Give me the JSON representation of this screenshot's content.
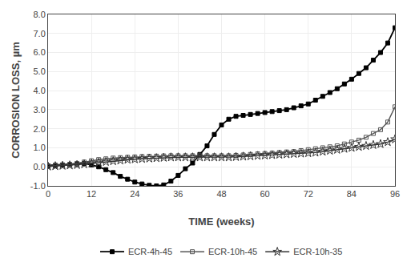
{
  "chart_data": {
    "type": "line",
    "xlabel": "TIME (weeks)",
    "ylabel": "CORROSION LOSS, µm",
    "xlim": [
      0,
      96
    ],
    "ylim": [
      -1.0,
      8.0
    ],
    "xticks": [
      0,
      12,
      24,
      36,
      48,
      60,
      72,
      84,
      96
    ],
    "yticks": [
      {
        "value": -1.0,
        "label": "-1.0"
      },
      {
        "value": 0.0,
        "label": "0.0"
      },
      {
        "value": 1.0,
        "label": "1.0"
      },
      {
        "value": 2.0,
        "label": "2.0"
      },
      {
        "value": 3.0,
        "label": "3.0"
      },
      {
        "value": 4.0,
        "label": "4.0"
      },
      {
        "value": 5.0,
        "label": "5.0"
      },
      {
        "value": 6.0,
        "label": "6.0"
      },
      {
        "value": 7.0,
        "label": "7.0"
      },
      {
        "value": 8.0,
        "label": "8.0"
      }
    ],
    "grid": true,
    "legend": "bottom",
    "x": [
      0,
      2,
      4,
      6,
      8,
      10,
      12,
      14,
      16,
      18,
      20,
      22,
      24,
      26,
      28,
      30,
      32,
      34,
      36,
      38,
      40,
      42,
      44,
      46,
      48,
      50,
      52,
      54,
      56,
      58,
      60,
      62,
      64,
      66,
      68,
      70,
      72,
      74,
      76,
      78,
      80,
      82,
      84,
      86,
      88,
      90,
      92,
      94,
      96
    ],
    "series": [
      {
        "name": "ECR-4h-45",
        "color": "#000000",
        "marker": "square",
        "values": [
          0.05,
          0.08,
          0.1,
          0.12,
          0.15,
          0.18,
          0.1,
          0.0,
          -0.15,
          -0.3,
          -0.5,
          -0.65,
          -0.8,
          -0.9,
          -0.97,
          -1.0,
          -0.95,
          -0.75,
          -0.45,
          -0.1,
          0.2,
          0.65,
          1.1,
          1.7,
          2.2,
          2.5,
          2.65,
          2.7,
          2.75,
          2.8,
          2.85,
          2.9,
          2.95,
          3.0,
          3.1,
          3.2,
          3.3,
          3.5,
          3.7,
          3.9,
          4.1,
          4.35,
          4.6,
          4.9,
          5.2,
          5.6,
          6.0,
          6.5,
          7.3
        ]
      },
      {
        "name": "ECR-10h-45",
        "color": "#555555",
        "marker": "square-open",
        "values": [
          0.02,
          0.05,
          0.08,
          0.12,
          0.18,
          0.25,
          0.32,
          0.38,
          0.42,
          0.46,
          0.48,
          0.5,
          0.52,
          0.54,
          0.55,
          0.56,
          0.57,
          0.58,
          0.58,
          0.58,
          0.58,
          0.58,
          0.58,
          0.58,
          0.58,
          0.58,
          0.6,
          0.62,
          0.65,
          0.68,
          0.7,
          0.72,
          0.75,
          0.78,
          0.8,
          0.85,
          0.9,
          0.95,
          1.0,
          1.05,
          1.1,
          1.2,
          1.3,
          1.4,
          1.55,
          1.75,
          1.95,
          2.35,
          3.15
        ]
      },
      {
        "name": "ECR-10h-35",
        "color": "#333333",
        "marker": "star-open",
        "values": [
          0.02,
          0.04,
          0.06,
          0.08,
          0.1,
          0.14,
          0.18,
          0.22,
          0.26,
          0.3,
          0.34,
          0.38,
          0.4,
          0.42,
          0.44,
          0.46,
          0.48,
          0.5,
          0.5,
          0.5,
          0.5,
          0.5,
          0.5,
          0.5,
          0.5,
          0.5,
          0.52,
          0.54,
          0.56,
          0.58,
          0.6,
          0.62,
          0.64,
          0.66,
          0.68,
          0.7,
          0.72,
          0.75,
          0.8,
          0.85,
          0.9,
          0.95,
          1.0,
          1.05,
          1.1,
          1.15,
          1.2,
          1.3,
          1.45
        ]
      }
    ]
  }
}
